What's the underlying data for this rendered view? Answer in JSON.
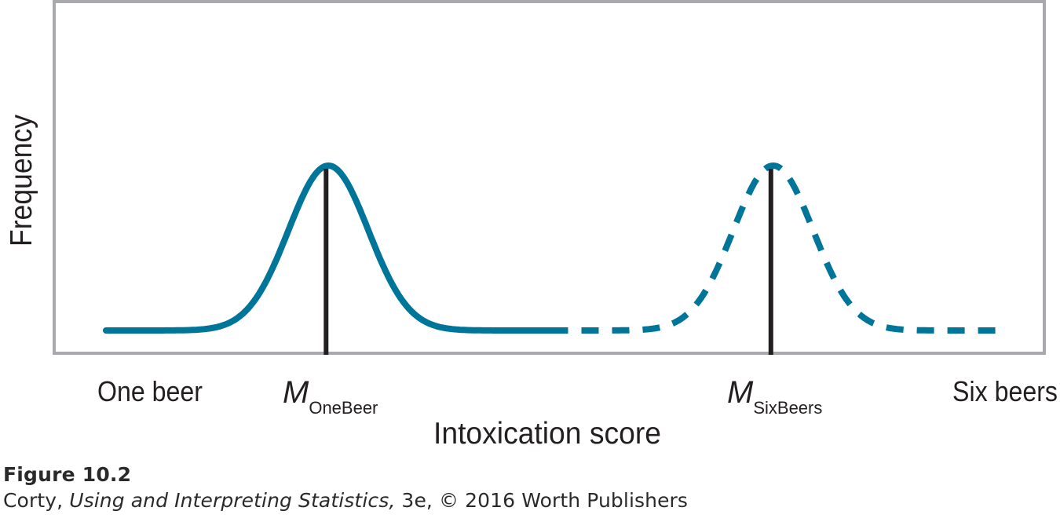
{
  "chart_data": {
    "type": "line",
    "title": "",
    "xlabel": "Intoxication score",
    "ylabel": "Frequency",
    "grid": false,
    "legend": "none",
    "x_end_labels": {
      "left": "One beer",
      "right": "Six beers"
    },
    "means": [
      {
        "symbol": "M",
        "subscript": "OneBeer",
        "x": 0.25
      },
      {
        "symbol": "M",
        "subscript": "SixBeers",
        "x": 0.75
      }
    ],
    "series": [
      {
        "mean": 0.25,
        "sd": 0.045,
        "peak": 1.0,
        "baseline": 0.0,
        "from": 0.0,
        "to": 0.5,
        "style": "solid"
      },
      {
        "mean": 0.75,
        "sd": 0.045,
        "peak": 1.0,
        "baseline": 0.0,
        "from": 0.5,
        "to": 1.0,
        "style": "dashed"
      }
    ],
    "xlim": [
      0,
      1
    ],
    "ylim": [
      0,
      1.2
    ],
    "colors": {
      "curve": "#00759a",
      "mean_line": "#231f20",
      "frame": "#a7a9ac",
      "text": "#231f20"
    }
  },
  "caption": {
    "figure_label": "Figure 10.2",
    "author": "Corty, ",
    "book_title": "Using and Interpreting Statistics,",
    "edition_rights": " 3e, © 2016 Worth Publishers"
  }
}
